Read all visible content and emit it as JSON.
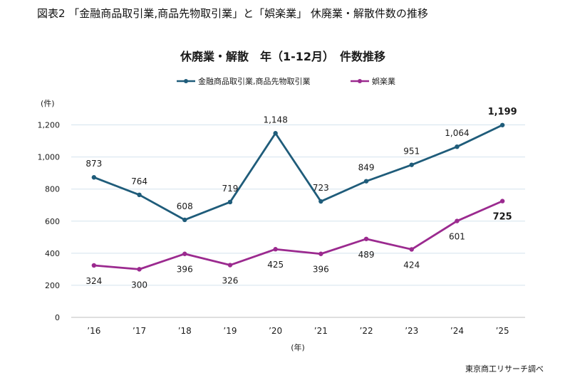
{
  "figure_caption": "図表2 「金融商品取引業,商品先物取引業」と「娯楽業」 休廃業・解散件数の推移",
  "source_note": "東京商工リサーチ調べ",
  "chart_data": {
    "type": "line",
    "title": "休廃業・解散　年（1-12月）　件数推移",
    "ylabel": "(件)",
    "xlabel": "(年)",
    "categories": [
      "’16",
      "’17",
      "’18",
      "’19",
      "’20",
      "’21",
      "’22",
      "’23",
      "’24",
      "’25"
    ],
    "ylim": [
      0,
      1300
    ],
    "yticks": [
      0,
      200,
      400,
      600,
      800,
      1000,
      1200
    ],
    "ytick_labels": [
      "0",
      "200",
      "400",
      "600",
      "800",
      "1,000",
      "1,200"
    ],
    "grid": "horizontal",
    "legend_position": "top-center",
    "series": [
      {
        "name": "金融商品取引業,商品先物取引業",
        "color": "#1f5c7a",
        "values": [
          873,
          764,
          608,
          719,
          1148,
          723,
          849,
          951,
          1064,
          1199
        ],
        "labels": [
          "873",
          "764",
          "608",
          "719",
          "1,148",
          "723",
          "849",
          "951",
          "1,064",
          "1,199"
        ],
        "label_position": "above"
      },
      {
        "name": "娯楽業",
        "color": "#9b2a8f",
        "values": [
          324,
          300,
          396,
          326,
          425,
          396,
          489,
          424,
          601,
          725
        ],
        "labels": [
          "324",
          "300",
          "396",
          "326",
          "425",
          "396",
          "489",
          "424",
          "601",
          "725"
        ],
        "label_position": "below"
      }
    ]
  }
}
